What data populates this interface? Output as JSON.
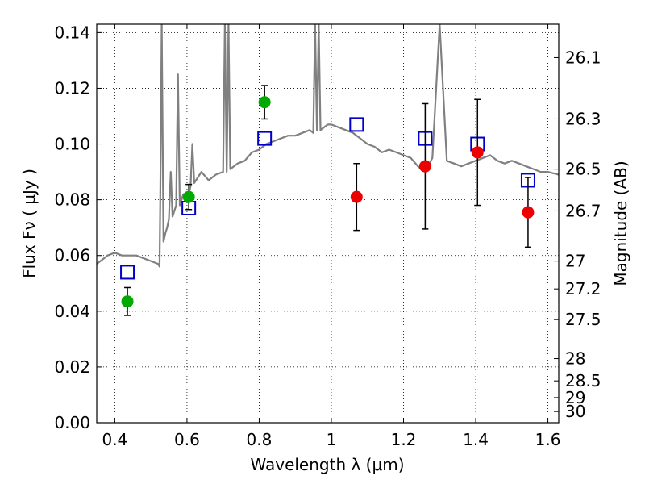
{
  "chart_data": {
    "type": "scatter",
    "xlabel": "Wavelength  λ (μm)",
    "ylabel": "Flux  Fν  ( μJy )",
    "ylabel_right": "Magnitude (AB)",
    "xlim": [
      0.35,
      1.63
    ],
    "ylim": [
      0.0,
      0.143
    ],
    "grid": true,
    "x_ticks": [
      0.4,
      0.6,
      0.8,
      1.0,
      1.2,
      1.4,
      1.6
    ],
    "x_tick_labels": [
      "0.4",
      "0.6",
      "0.8",
      "1",
      "1.2",
      "1.4",
      "1.6"
    ],
    "y_ticks": [
      0.0,
      0.02,
      0.04,
      0.06,
      0.08,
      0.1,
      0.12,
      0.14
    ],
    "y_tick_labels": [
      "0.00",
      "0.02",
      "0.04",
      "0.06",
      "0.08",
      "0.10",
      "0.12",
      "0.14"
    ],
    "right_ticks": [
      {
        "label": "26.1",
        "flux": 0.131
      },
      {
        "label": "26.3",
        "flux": 0.109
      },
      {
        "label": "26.5",
        "flux": 0.091
      },
      {
        "label": "26.7",
        "flux": 0.076
      },
      {
        "label": "27",
        "flux": 0.058
      },
      {
        "label": "27.2",
        "flux": 0.048
      },
      {
        "label": "27.5",
        "flux": 0.037
      },
      {
        "label": "28",
        "flux": 0.023
      },
      {
        "label": "28.5",
        "flux": 0.015
      },
      {
        "label": "29",
        "flux": 0.009
      },
      {
        "label": "30",
        "flux": 0.004
      }
    ],
    "series": [
      {
        "kind": "line",
        "color": "#808080",
        "x": [
          0.35,
          0.37,
          0.38,
          0.4,
          0.42,
          0.44,
          0.46,
          0.48,
          0.5,
          0.52,
          0.524,
          0.526,
          0.53,
          0.535,
          0.54,
          0.545,
          0.55,
          0.555,
          0.56,
          0.57,
          0.575,
          0.58,
          0.59,
          0.6,
          0.61,
          0.615,
          0.62,
          0.64,
          0.66,
          0.68,
          0.7,
          0.705,
          0.71,
          0.715,
          0.72,
          0.74,
          0.76,
          0.78,
          0.8,
          0.82,
          0.84,
          0.86,
          0.88,
          0.9,
          0.92,
          0.94,
          0.95,
          0.955,
          0.96,
          0.965,
          0.97,
          0.98,
          0.99,
          1.0,
          1.02,
          1.04,
          1.06,
          1.08,
          1.1,
          1.12,
          1.14,
          1.16,
          1.18,
          1.2,
          1.22,
          1.24,
          1.26,
          1.28,
          1.3,
          1.32,
          1.34,
          1.36,
          1.38,
          1.4,
          1.42,
          1.44,
          1.46,
          1.48,
          1.5,
          1.52,
          1.54,
          1.56,
          1.58,
          1.6,
          1.63
        ],
        "y": [
          0.057,
          0.059,
          0.06,
          0.061,
          0.06,
          0.06,
          0.06,
          0.059,
          0.058,
          0.057,
          0.056,
          0.08,
          0.143,
          0.065,
          0.068,
          0.07,
          0.073,
          0.09,
          0.074,
          0.078,
          0.125,
          0.078,
          0.082,
          0.079,
          0.085,
          0.1,
          0.086,
          0.09,
          0.087,
          0.089,
          0.09,
          0.143,
          0.09,
          0.143,
          0.091,
          0.093,
          0.094,
          0.097,
          0.098,
          0.1,
          0.101,
          0.102,
          0.103,
          0.103,
          0.104,
          0.105,
          0.104,
          0.143,
          0.105,
          0.143,
          0.105,
          0.106,
          0.107,
          0.107,
          0.106,
          0.105,
          0.104,
          0.102,
          0.1,
          0.099,
          0.097,
          0.098,
          0.097,
          0.096,
          0.095,
          0.092,
          0.09,
          0.095,
          0.143,
          0.094,
          0.093,
          0.092,
          0.093,
          0.094,
          0.095,
          0.096,
          0.094,
          0.093,
          0.094,
          0.093,
          0.092,
          0.091,
          0.09,
          0.09,
          0.089
        ]
      },
      {
        "kind": "markers",
        "name": "",
        "marker": "open-square",
        "color": "#0000cc",
        "x": [
          0.435,
          0.605,
          0.815,
          1.07,
          1.26,
          1.405,
          1.545
        ],
        "y": [
          0.054,
          0.077,
          0.102,
          0.107,
          0.102,
          0.1,
          0.087
        ]
      },
      {
        "kind": "markers",
        "name": "",
        "marker": "filled-circle",
        "color": "#00aa00",
        "x": [
          0.435,
          0.605,
          0.815
        ],
        "y": [
          0.0435,
          0.081,
          0.115
        ],
        "err": [
          0.005,
          0.0045,
          0.006
        ]
      },
      {
        "kind": "markers",
        "name": "",
        "marker": "filled-circle",
        "color": "#ee0000",
        "x": [
          1.07,
          1.26,
          1.405,
          1.545
        ],
        "y": [
          0.081,
          0.092,
          0.097,
          0.0755
        ],
        "err": [
          0.012,
          0.0225,
          0.019,
          0.0125
        ]
      }
    ]
  }
}
